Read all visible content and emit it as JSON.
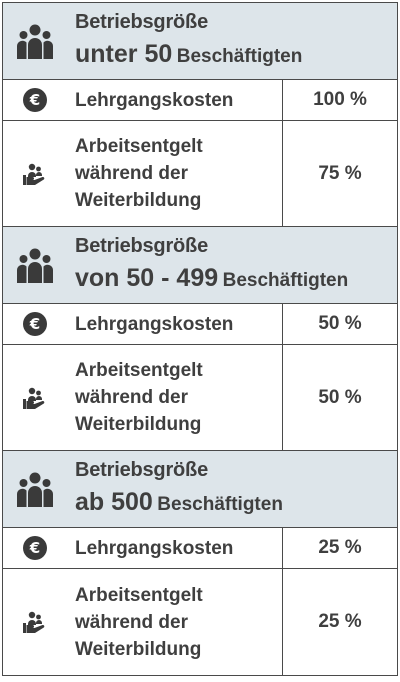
{
  "sections": [
    {
      "header_title": "Betriebsgröße",
      "header_size": "unter 50",
      "header_suffix": "Beschäftigten",
      "rows": [
        {
          "icon": "euro-icon",
          "label": "Lehrgangskosten",
          "value": "100 %"
        },
        {
          "icon": "person-hand-icon",
          "label_lines": [
            "Arbeitsentgelt",
            "während der",
            "Weiterbildung"
          ],
          "value": "75 %"
        }
      ]
    },
    {
      "header_title": "Betriebsgröße",
      "header_size": "von 50 - 499",
      "header_suffix": "Beschäftigten",
      "rows": [
        {
          "icon": "euro-icon",
          "label": "Lehrgangskosten",
          "value": "50 %"
        },
        {
          "icon": "person-hand-icon",
          "label_lines": [
            "Arbeitsentgelt",
            "während der",
            "Weiterbildung"
          ],
          "value": "50 %"
        }
      ]
    },
    {
      "header_title": "Betriebsgröße",
      "header_size": "ab 500",
      "header_suffix": "Beschäftigten",
      "rows": [
        {
          "icon": "euro-icon",
          "label": "Lehrgangskosten",
          "value": "25 %"
        },
        {
          "icon": "person-hand-icon",
          "label_lines": [
            "Arbeitsentgelt",
            "während der",
            "Weiterbildung"
          ],
          "value": "25 %"
        }
      ]
    }
  ],
  "icons": {
    "group": "group-people-icon",
    "euro_symbol": "€"
  },
  "colors": {
    "header_bg": "#dde5ea",
    "text": "#3f3f3f",
    "border": "#4a4a4a",
    "icon": "#3a3a3a"
  }
}
